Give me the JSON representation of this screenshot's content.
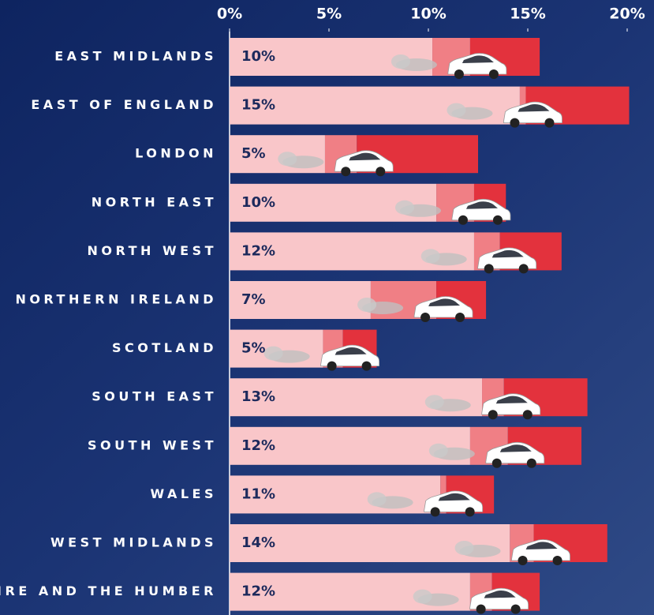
{
  "chart_data": {
    "type": "stacked-bar-horizontal",
    "categories": [
      "EAST MIDLANDS",
      "EAST OF ENGLAND",
      "LONDON",
      "NORTH EAST",
      "NORTH WEST",
      "NORTHERN IRELAND",
      "SCOTLAND",
      "SOUTH EAST",
      "SOUTH WEST",
      "WALES",
      "WEST MIDLANDS",
      "YORKSHIRE AND THE HUMBER"
    ],
    "series": [
      {
        "color": "#f9c6c9",
        "values": [
          10.2,
          14.6,
          4.8,
          10.4,
          12.3,
          7.1,
          4.7,
          12.7,
          12.1,
          10.6,
          14.1,
          12.1
        ],
        "value_labels": [
          "10%",
          "15%",
          "5%",
          "10%",
          "12%",
          "7%",
          "5%",
          "13%",
          "12%",
          "11%",
          "14%",
          "12%"
        ]
      },
      {
        "color": "#f07f85",
        "values": [
          1.9,
          0.3,
          1.6,
          1.9,
          1.3,
          3.3,
          1.0,
          1.1,
          1.9,
          0.3,
          1.2,
          1.1
        ]
      },
      {
        "color": "#e3323d",
        "values": [
          3.5,
          5.2,
          6.1,
          1.6,
          3.1,
          2.5,
          1.7,
          4.2,
          3.7,
          2.4,
          3.7,
          2.4
        ]
      }
    ],
    "xlim": [
      0,
      20
    ],
    "xticks": [
      {
        "value": 0,
        "label": "0%"
      },
      {
        "value": 5,
        "label": "5%"
      },
      {
        "value": 10,
        "label": "10%"
      },
      {
        "value": 15,
        "label": "15%"
      },
      {
        "value": 20,
        "label": "20%"
      }
    ]
  }
}
